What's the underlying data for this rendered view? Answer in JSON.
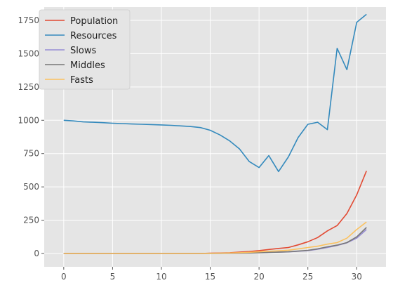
{
  "chart_data": {
    "type": "line",
    "title": "",
    "xlabel": "",
    "ylabel": "",
    "xlim": [
      -2,
      33
    ],
    "ylim": [
      -100,
      1850
    ],
    "xticks": [
      0,
      5,
      10,
      15,
      20,
      25,
      30
    ],
    "yticks": [
      0,
      250,
      500,
      750,
      1000,
      1250,
      1500,
      1750
    ],
    "grid": true,
    "legend_position": "top-left",
    "x": [
      0,
      1,
      2,
      3,
      4,
      5,
      6,
      7,
      8,
      9,
      10,
      11,
      12,
      13,
      14,
      15,
      16,
      17,
      18,
      19,
      20,
      21,
      22,
      23,
      24,
      25,
      26,
      27,
      28,
      29,
      30,
      31
    ],
    "series": [
      {
        "name": "Population",
        "color": "#E24A33",
        "values": [
          0,
          0,
          0,
          0,
          0,
          0,
          0,
          0,
          0,
          0,
          0,
          0,
          0,
          0,
          0,
          2,
          4,
          6,
          10,
          15,
          22,
          30,
          38,
          45,
          65,
          88,
          120,
          170,
          210,
          300,
          440,
          620
        ]
      },
      {
        "name": "Resources",
        "color": "#348ABD",
        "values": [
          1000,
          995,
          988,
          985,
          982,
          978,
          975,
          972,
          970,
          968,
          965,
          962,
          958,
          953,
          945,
          925,
          890,
          845,
          785,
          690,
          645,
          735,
          615,
          725,
          870,
          970,
          985,
          930,
          1540,
          1380,
          1735,
          1795
        ]
      },
      {
        "name": "Slows",
        "color": "#988ED5",
        "values": [
          0,
          0,
          0,
          0,
          0,
          0,
          0,
          0,
          0,
          0,
          0,
          0,
          0,
          0,
          0,
          0,
          1,
          2,
          3,
          5,
          7,
          9,
          10,
          12,
          17,
          22,
          32,
          45,
          60,
          80,
          115,
          180
        ]
      },
      {
        "name": "Middles",
        "color": "#777777",
        "values": [
          0,
          0,
          0,
          0,
          0,
          0,
          0,
          0,
          0,
          0,
          0,
          0,
          0,
          0,
          0,
          0,
          1,
          2,
          3,
          4,
          6,
          8,
          10,
          13,
          18,
          24,
          35,
          50,
          63,
          82,
          125,
          195
        ]
      },
      {
        "name": "Fasts",
        "color": "#FBC15E",
        "values": [
          0,
          0,
          0,
          0,
          0,
          0,
          0,
          0,
          0,
          0,
          0,
          0,
          0,
          0,
          0,
          1,
          2,
          4,
          6,
          9,
          13,
          17,
          20,
          25,
          35,
          45,
          55,
          70,
          82,
          115,
          180,
          237
        ]
      }
    ],
    "colors": {
      "plot_background": "#E5E5E5",
      "grid": "#FFFFFF",
      "legend_background": "#E5E5E5"
    }
  }
}
